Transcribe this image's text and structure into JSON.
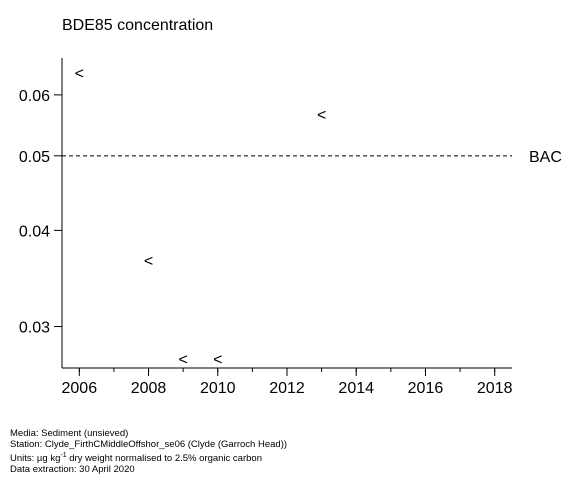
{
  "chart_data": {
    "type": "scatter",
    "title": "BDE85 concentration",
    "xlabel": "",
    "ylabel": "",
    "x_ticks": [
      2006,
      2008,
      2010,
      2012,
      2014,
      2016,
      2018
    ],
    "y_ticks": [
      "0.03",
      "0.04",
      "0.05",
      "0.06"
    ],
    "xlim": [
      2005.5,
      2018.5
    ],
    "ylim": [
      0.0265,
      0.067
    ],
    "y_scale": "log",
    "grid": false,
    "marker": "<",
    "points": [
      {
        "x": 2006,
        "y": 0.064
      },
      {
        "x": 2008,
        "y": 0.0365
      },
      {
        "x": 2009,
        "y": 0.0272
      },
      {
        "x": 2010,
        "y": 0.0272
      },
      {
        "x": 2013,
        "y": 0.0565
      }
    ],
    "reference_lines": [
      {
        "label": "BAC",
        "y": 0.05,
        "style": "dashed"
      }
    ]
  },
  "footer": {
    "media": "Media: Sediment (unsieved)",
    "station": "Station: Clyde_FirthCMiddleOffshor_se06 (Clyde (Garroch Head))",
    "units_prefix": "Units:  µg kg",
    "units_sup": "-1",
    "units_suffix": " dry weight normalised to 2.5% organic carbon",
    "extraction": "Data extraction: 30 April 2020"
  }
}
